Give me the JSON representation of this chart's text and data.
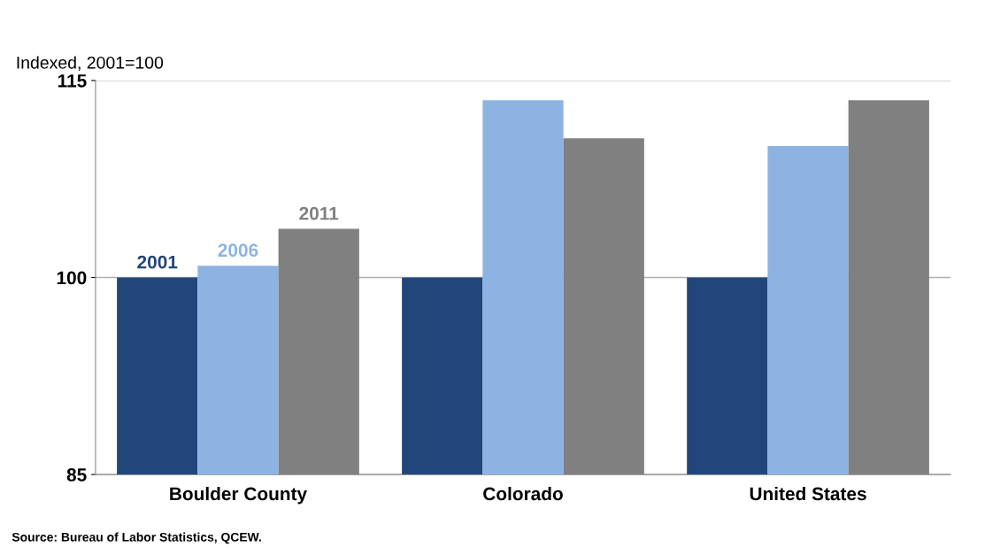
{
  "chart_data": {
    "type": "bar",
    "ylabel": "Indexed, 2001=100",
    "categories": [
      "Boulder County",
      "Colorado",
      "United States"
    ],
    "series": [
      {
        "name": "2001",
        "color": "#21467a",
        "values": [
          100,
          100,
          100
        ]
      },
      {
        "name": "2006",
        "color": "#8db3e2",
        "values": [
          100.9,
          113.5,
          110.0
        ]
      },
      {
        "name": "2011",
        "color": "#808080",
        "values": [
          103.7,
          110.6,
          113.5
        ]
      }
    ],
    "ylim": [
      85,
      115
    ],
    "yticks": [
      85,
      100,
      115
    ],
    "grid": "y",
    "legend": false,
    "annotations": [
      "Source: Bureau of Labor Statistics, QCEW."
    ]
  }
}
